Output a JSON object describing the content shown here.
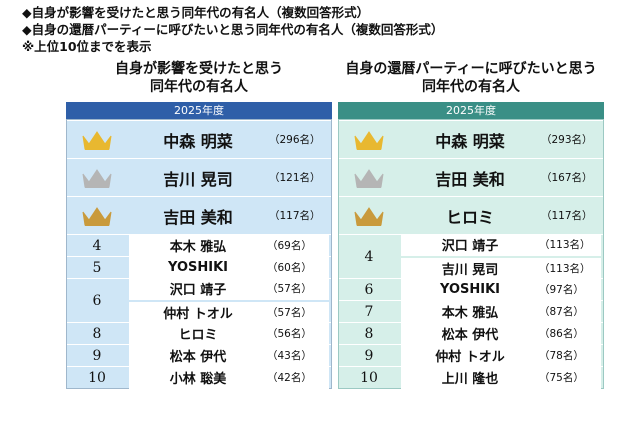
{
  "notes": [
    "◆自身が影響を受けたと思う同年代の有名人（複数回答形式）",
    "◆自身の還暦パーティーに呼びたいと思う同年代の有名人（複数回答形式）",
    "※上位10位までを表示"
  ],
  "left": {
    "title_line1": "自身が影響を受けたと思う",
    "title_line2": "同年代の有名人",
    "year": "2025年度",
    "ranks": [
      {
        "rank": "1",
        "crown": "gold",
        "names": [
          {
            "name": "中森 明菜",
            "count": "（296名）"
          }
        ]
      },
      {
        "rank": "2",
        "crown": "silver",
        "names": [
          {
            "name": "吉川 晃司",
            "count": "（121名）"
          }
        ]
      },
      {
        "rank": "3",
        "crown": "bronze",
        "names": [
          {
            "name": "吉田 美和",
            "count": "（117名）"
          }
        ]
      },
      {
        "rank": "4",
        "names": [
          {
            "name": "本木 雅弘",
            "count": "（69名）"
          }
        ]
      },
      {
        "rank": "5",
        "names": [
          {
            "name": "YOSHIKI",
            "count": "（60名）"
          }
        ]
      },
      {
        "rank": "6",
        "names": [
          {
            "name": "沢口 靖子",
            "count": "（57名）"
          },
          {
            "name": "仲村 トオル",
            "count": "（57名）"
          }
        ]
      },
      {
        "rank": "8",
        "names": [
          {
            "name": "ヒロミ",
            "count": "（56名）"
          }
        ]
      },
      {
        "rank": "9",
        "names": [
          {
            "name": "松本 伊代",
            "count": "（43名）"
          }
        ]
      },
      {
        "rank": "10",
        "names": [
          {
            "name": "小林 聡美",
            "count": "（42名）"
          }
        ]
      }
    ]
  },
  "right": {
    "title_line1": "自身の還暦パーティーに呼びたいと思う",
    "title_line2": "同年代の有名人",
    "year": "2025年度",
    "ranks": [
      {
        "rank": "1",
        "crown": "gold",
        "names": [
          {
            "name": "中森 明菜",
            "count": "（293名）"
          }
        ]
      },
      {
        "rank": "2",
        "crown": "silver",
        "names": [
          {
            "name": "吉田 美和",
            "count": "（167名）"
          }
        ]
      },
      {
        "rank": "3",
        "crown": "bronze",
        "names": [
          {
            "name": "ヒロミ",
            "count": "（117名）"
          }
        ]
      },
      {
        "rank": "4",
        "names": [
          {
            "name": "沢口 靖子",
            "count": "（113名）"
          },
          {
            "name": "吉川 晃司",
            "count": "（113名）"
          }
        ]
      },
      {
        "rank": "6",
        "names": [
          {
            "name": "YOSHIKI",
            "count": "（97名）"
          }
        ]
      },
      {
        "rank": "7",
        "names": [
          {
            "name": "本木 雅弘",
            "count": "（87名）"
          }
        ]
      },
      {
        "rank": "8",
        "names": [
          {
            "name": "松本 伊代",
            "count": "（86名）"
          }
        ]
      },
      {
        "rank": "9",
        "names": [
          {
            "name": "仲村 トオル",
            "count": "（78名）"
          }
        ]
      },
      {
        "rank": "10",
        "names": [
          {
            "name": "上川 隆也",
            "count": "（75名）"
          }
        ]
      }
    ]
  },
  "colors": {
    "gold": "#e8b830",
    "silver": "#b5b5b5",
    "bronze": "#c99a3c"
  }
}
